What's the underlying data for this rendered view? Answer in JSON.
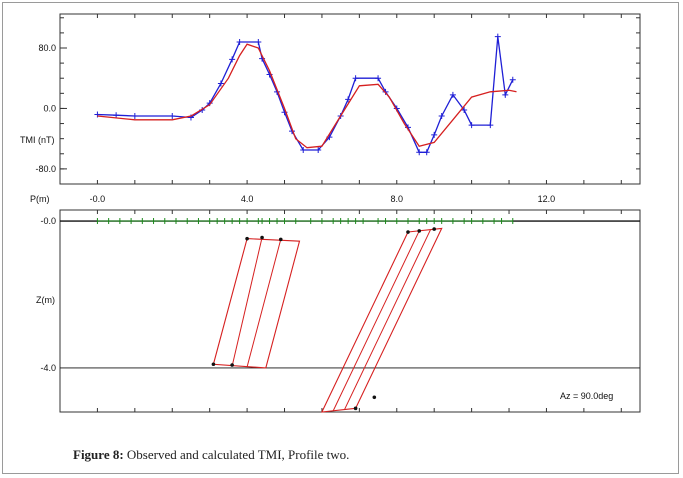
{
  "caption": {
    "label": "Figure 8:",
    "text": " Observed and calculated TMI, Profile two."
  },
  "chart_data": [
    {
      "type": "line",
      "panel": "profile",
      "ylabel": "TMI (nT)",
      "xlabel": "P(m)",
      "xlim": [
        -1.0,
        14.5
      ],
      "ylim": [
        -100,
        125
      ],
      "y_ticks": [
        80.0,
        0.0,
        -80.0
      ],
      "y_tick_labels": [
        "80.0",
        "0.0",
        "-80.0"
      ],
      "x_ticks": [
        0.0,
        4.0,
        8.0,
        12.0
      ],
      "x_tick_labels": [
        "-0.0",
        "4.0",
        "8.0",
        "12.0"
      ],
      "series": [
        {
          "name": "",
          "role": "observed",
          "color": "#1f1fd6",
          "markers": "plus",
          "x": [
            0.0,
            0.5,
            1.0,
            2.0,
            2.5,
            2.8,
            3.0,
            3.3,
            3.6,
            3.8,
            4.3,
            4.4,
            4.6,
            4.8,
            5.0,
            5.2,
            5.5,
            5.9,
            6.2,
            6.5,
            6.7,
            6.9,
            7.5,
            7.7,
            8.0,
            8.3,
            8.6,
            8.8,
            9.0,
            9.2,
            9.5,
            9.8,
            10.0,
            10.5,
            10.7,
            10.9,
            11.1
          ],
          "y": [
            -8,
            -9,
            -10,
            -10,
            -12,
            -2,
            7,
            33,
            65,
            88,
            88,
            66,
            45,
            22,
            -5,
            -30,
            -55,
            -55,
            -38,
            -10,
            12,
            40,
            40,
            22,
            0,
            -25,
            -58,
            -58,
            -35,
            -10,
            18,
            -2,
            -22,
            -22,
            95,
            18,
            38
          ]
        },
        {
          "name": "",
          "role": "calculated",
          "color": "#d62020",
          "markers": "none",
          "x": [
            0.0,
            1.0,
            2.0,
            2.5,
            3.0,
            3.5,
            3.8,
            4.0,
            4.3,
            4.6,
            5.0,
            5.3,
            5.6,
            6.0,
            6.5,
            7.0,
            7.5,
            7.8,
            8.2,
            8.6,
            9.0,
            9.5,
            10.0,
            10.5,
            11.0,
            11.2
          ],
          "y": [
            -10,
            -15,
            -15,
            -10,
            5,
            40,
            70,
            85,
            80,
            50,
            0,
            -40,
            -52,
            -50,
            -10,
            30,
            32,
            15,
            -20,
            -50,
            -45,
            -15,
            15,
            22,
            24,
            22
          ]
        }
      ]
    },
    {
      "type": "line",
      "panel": "depth_section",
      "ylabel": "Z(m)",
      "xlim": [
        -1.0,
        14.5
      ],
      "ylim": [
        -5.2,
        0.3
      ],
      "y_ticks": [
        0.0,
        -4.0
      ],
      "y_tick_labels": [
        "-0.0",
        "-4.0"
      ],
      "annotation": "Az = 90.0deg",
      "station_color": "#1a8a1a",
      "stations": [
        0.0,
        0.3,
        0.6,
        0.9,
        1.2,
        1.5,
        1.8,
        2.1,
        2.4,
        2.7,
        3.0,
        3.2,
        3.4,
        3.6,
        3.8,
        4.0,
        4.3,
        4.4,
        4.6,
        4.8,
        5.0,
        5.3,
        5.7,
        6.0,
        6.3,
        6.5,
        6.7,
        6.9,
        7.1,
        7.5,
        7.7,
        8.0,
        8.3,
        8.6,
        8.8,
        9.0,
        9.2,
        9.5,
        9.8,
        10.0,
        10.3,
        10.6,
        10.8,
        11.1
      ],
      "bodies_color": "#d62020",
      "bodies": [
        {
          "outer": [
            [
              4.0,
              -0.48
            ],
            [
              5.4,
              -0.55
            ],
            [
              4.5,
              -4.0
            ],
            [
              3.1,
              -3.9
            ]
          ],
          "inner": [
            [
              [
                4.4,
                -0.45
              ],
              [
                3.6,
                -3.95
              ]
            ],
            [
              [
                4.9,
                -0.5
              ],
              [
                4.0,
                -3.97
              ]
            ]
          ]
        },
        {
          "outer": [
            [
              8.3,
              -0.3
            ],
            [
              9.2,
              -0.2
            ],
            [
              6.9,
              -5.1
            ],
            [
              6.0,
              -5.2
            ]
          ],
          "inner": [
            [
              [
                8.6,
                -0.27
              ],
              [
                6.3,
                -5.17
              ]
            ],
            [
              [
                8.9,
                -0.24
              ],
              [
                6.6,
                -5.14
              ]
            ]
          ]
        }
      ],
      "vertex_points": [
        [
          4.0,
          -0.48
        ],
        [
          4.4,
          -0.45
        ],
        [
          4.9,
          -0.5
        ],
        [
          3.1,
          -3.9
        ],
        [
          3.6,
          -3.92
        ],
        [
          8.3,
          -0.3
        ],
        [
          8.6,
          -0.27
        ],
        [
          9.0,
          -0.22
        ],
        [
          6.9,
          -5.1
        ],
        [
          7.4,
          -4.8
        ]
      ]
    }
  ]
}
